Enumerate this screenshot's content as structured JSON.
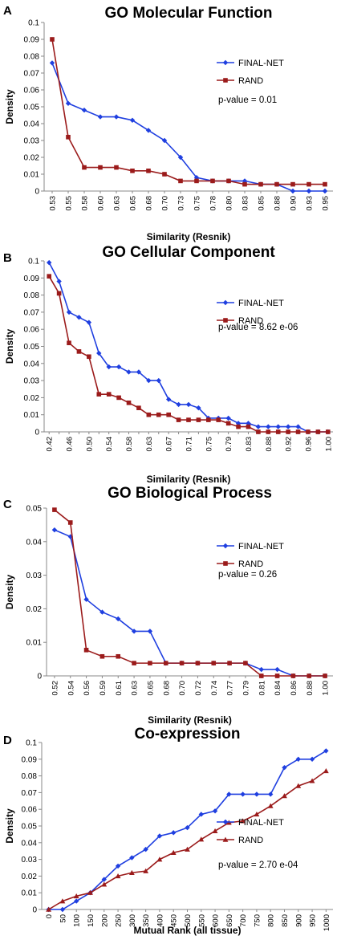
{
  "chart_data": [
    {
      "panel": "A",
      "type": "line",
      "title": "GO Molecular  Function",
      "xlabel": "Similarity (Resnik)",
      "ylabel": "Density",
      "ylim": [
        0,
        0.1
      ],
      "yticks": [
        "0",
        "0.01",
        "0.02",
        "0.03",
        "0.04",
        "0.05",
        "0.06",
        "0.07",
        "0.08",
        "0.09",
        "0.1"
      ],
      "categories": [
        "0.53",
        "0.55",
        "0.58",
        "0.60",
        "0.63",
        "0.65",
        "0.68",
        "0.70",
        "0.73",
        "0.75",
        "0.78",
        "0.80",
        "0.83",
        "0.85",
        "0.88",
        "0.90",
        "0.93",
        "0.95"
      ],
      "series": [
        {
          "name": "FINAL-NET",
          "color": "#1f3fe0",
          "marker": "diamond",
          "values": [
            0.076,
            0.052,
            0.048,
            0.044,
            0.044,
            0.042,
            0.036,
            0.03,
            0.02,
            0.008,
            0.006,
            0.006,
            0.006,
            0.004,
            0.004,
            0.0,
            0.0,
            0.0
          ]
        },
        {
          "name": "RAND",
          "color": "#9b1b1b",
          "marker": "square",
          "values": [
            0.09,
            0.032,
            0.014,
            0.014,
            0.014,
            0.012,
            0.012,
            0.01,
            0.006,
            0.006,
            0.006,
            0.006,
            0.004,
            0.004,
            0.004,
            0.004,
            0.004,
            0.004
          ]
        }
      ],
      "annotation": "p-value = 0.01",
      "legend_position": "right"
    },
    {
      "panel": "B",
      "type": "line",
      "title": "GO Cellular Component",
      "xlabel": "Similarity (Resnik)",
      "ylabel": "Density",
      "ylim": [
        0,
        0.1
      ],
      "yticks": [
        "0",
        "0.01",
        "0.02",
        "0.03",
        "0.04",
        "0.05",
        "0.06",
        "0.07",
        "0.08",
        "0.09",
        "0.1"
      ],
      "categories": [
        "0.42",
        "0.44",
        "0.46",
        "0.48",
        "0.50",
        "0.52",
        "0.54",
        "0.56",
        "0.58",
        "0.60",
        "0.63",
        "0.65",
        "0.67",
        "0.69",
        "0.71",
        "0.73",
        "0.75",
        "0.77",
        "0.79",
        "0.81",
        "0.83",
        "0.85",
        "0.88",
        "0.90",
        "0.92",
        "0.94",
        "0.96",
        "0.98",
        "1.00"
      ],
      "xticks_shown": [
        "0.42",
        "0.46",
        "0.50",
        "0.54",
        "0.58",
        "0.63",
        "0.67",
        "0.71",
        "0.75",
        "0.79",
        "0.83",
        "0.88",
        "0.92",
        "0.96",
        "1.00"
      ],
      "series": [
        {
          "name": "FINAL-NET",
          "color": "#1f3fe0",
          "marker": "diamond",
          "values": [
            0.099,
            0.088,
            0.07,
            0.067,
            0.064,
            0.046,
            0.038,
            0.038,
            0.035,
            0.035,
            0.03,
            0.03,
            0.019,
            0.016,
            0.016,
            0.014,
            0.008,
            0.008,
            0.008,
            0.005,
            0.005,
            0.003,
            0.003,
            0.003,
            0.003,
            0.003,
            0.0,
            0.0,
            0.0
          ]
        },
        {
          "name": "RAND",
          "color": "#9b1b1b",
          "marker": "square",
          "values": [
            0.091,
            0.081,
            0.052,
            0.047,
            0.044,
            0.022,
            0.022,
            0.02,
            0.017,
            0.014,
            0.01,
            0.01,
            0.01,
            0.007,
            0.007,
            0.007,
            0.007,
            0.007,
            0.005,
            0.003,
            0.003,
            0.0,
            0.0,
            0.0,
            0.0,
            0.0,
            0.0,
            0.0,
            0.0
          ]
        }
      ],
      "annotation": "p-value = 8.62 e-06",
      "legend_position": "right"
    },
    {
      "panel": "C",
      "type": "line",
      "title": "GO Biological Process",
      "xlabel": "Similarity (Resnik)",
      "ylabel": "Density",
      "ylim": [
        0,
        0.05
      ],
      "yticks": [
        "0",
        "0.01",
        "0.02",
        "0.03",
        "0.04",
        "0.05"
      ],
      "categories": [
        "0.52",
        "0.54",
        "0.56",
        "0.59",
        "0.61",
        "0.63",
        "0.65",
        "0.68",
        "0.70",
        "0.72",
        "0.74",
        "0.77",
        "0.79",
        "0.81",
        "0.84",
        "0.86",
        "0.88",
        "1.00"
      ],
      "series": [
        {
          "name": "FINAL-NET",
          "color": "#1f3fe0",
          "marker": "diamond",
          "values": [
            0.0435,
            0.0415,
            0.0228,
            0.019,
            0.017,
            0.0133,
            0.0133,
            0.0038,
            0.0038,
            0.0038,
            0.0038,
            0.0038,
            0.0038,
            0.0019,
            0.0019,
            0.0,
            0.0,
            0.0
          ]
        },
        {
          "name": "RAND",
          "color": "#9b1b1b",
          "marker": "square",
          "values": [
            0.0495,
            0.0457,
            0.0077,
            0.0058,
            0.0058,
            0.0038,
            0.0038,
            0.0038,
            0.0038,
            0.0038,
            0.0038,
            0.0038,
            0.0038,
            0.0,
            0.0,
            0.0,
            0.0,
            0.0
          ]
        }
      ],
      "annotation": "p-value = 0.26",
      "legend_position": "right"
    },
    {
      "panel": "D",
      "type": "line",
      "title": "Co-expression",
      "xlabel": "Mutual Rank (all tissue)",
      "ylabel": "Density",
      "ylim": [
        0,
        0.1
      ],
      "yticks": [
        "0",
        "0.01",
        "0.02",
        "0.03",
        "0.04",
        "0.05",
        "0.06",
        "0.07",
        "0.08",
        "0.09",
        "0.1"
      ],
      "categories": [
        "0",
        "50",
        "100",
        "150",
        "200",
        "250",
        "300",
        "350",
        "400",
        "450",
        "500",
        "550",
        "600",
        "650",
        "700",
        "750",
        "800",
        "850",
        "900",
        "950",
        "1000"
      ],
      "series": [
        {
          "name": "FINAL-NET",
          "color": "#1f3fe0",
          "marker": "diamond",
          "values": [
            0.0,
            0.0,
            0.005,
            0.01,
            0.018,
            0.026,
            0.031,
            0.036,
            0.044,
            0.046,
            0.049,
            0.057,
            0.059,
            0.069,
            0.069,
            0.069,
            0.069,
            0.085,
            0.09,
            0.09,
            0.095
          ]
        },
        {
          "name": "RAND",
          "color": "#9b1b1b",
          "marker": "triangle",
          "values": [
            0.0,
            0.005,
            0.008,
            0.01,
            0.015,
            0.02,
            0.022,
            0.023,
            0.03,
            0.034,
            0.036,
            0.042,
            0.047,
            0.052,
            0.053,
            0.057,
            0.062,
            0.068,
            0.074,
            0.077,
            0.083
          ]
        }
      ],
      "annotation": "p-value = 2.70 e-04",
      "legend_position": "right"
    }
  ]
}
